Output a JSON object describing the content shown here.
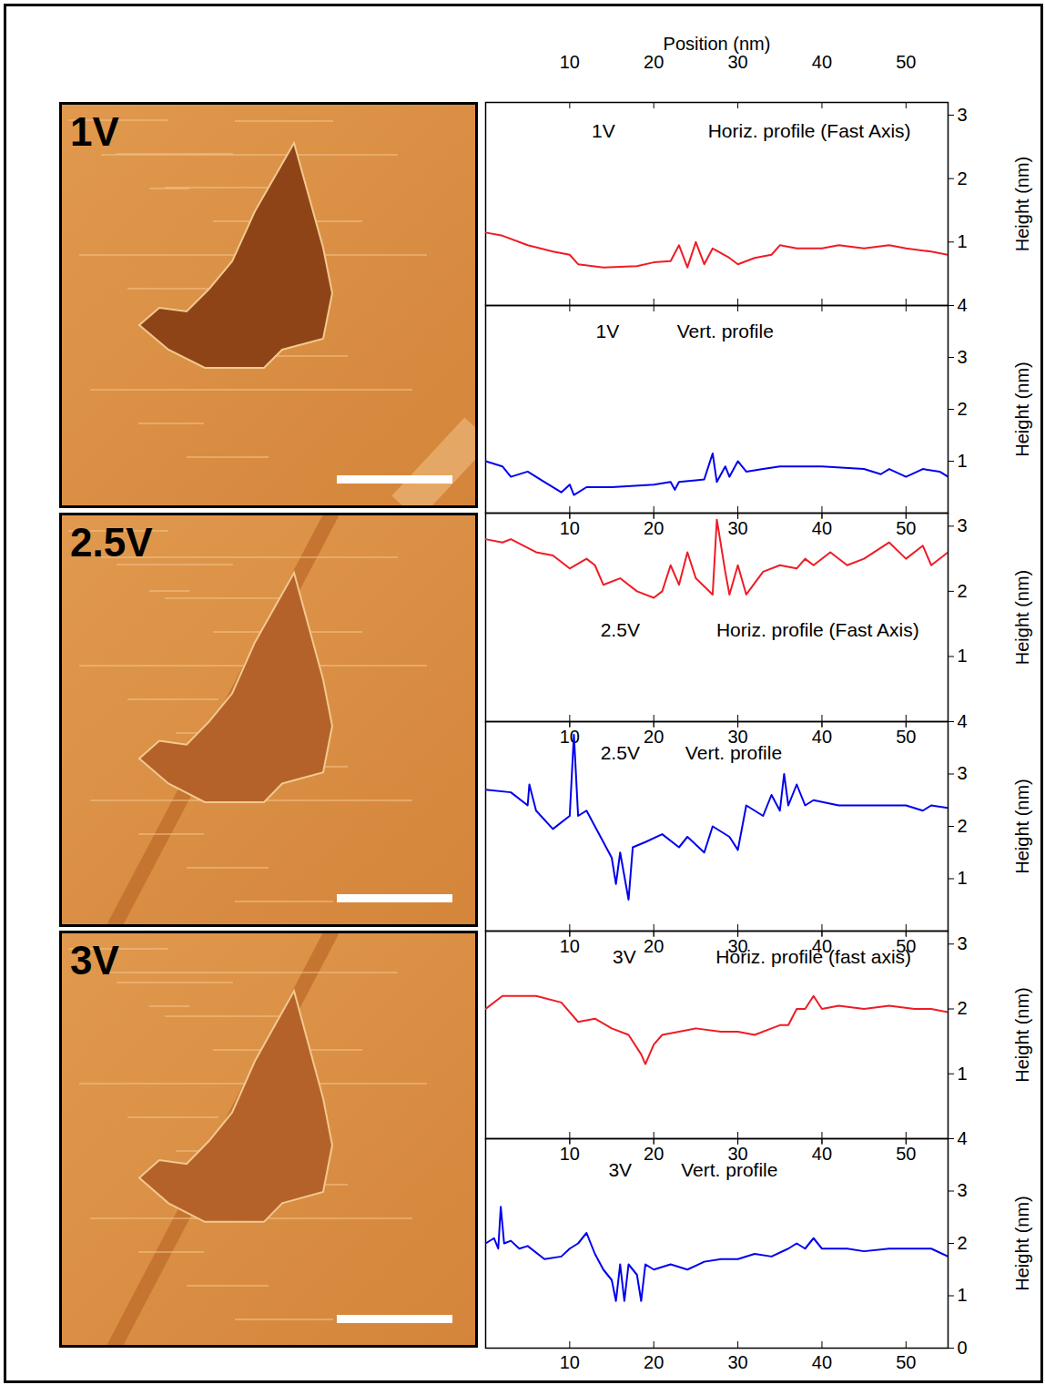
{
  "images": [
    {
      "label": "1V"
    },
    {
      "label": "2.5V"
    },
    {
      "label": "3V"
    }
  ],
  "chart_data": [
    {
      "type": "line",
      "xlabel": "Position (nm)",
      "ylabel": "Height (nm)",
      "annotations": [
        {
          "text": "1V",
          "x": 14,
          "y": 2.75
        },
        {
          "text": "Horiz. profile (Fast Axis)",
          "x": 38.5,
          "y": 2.75
        }
      ],
      "xlim": [
        0,
        55
      ],
      "xticks": [
        10,
        20,
        30,
        40,
        50
      ],
      "ylim": [
        0,
        3.2
      ],
      "yticks": [
        1,
        2,
        3
      ],
      "tick_labels": true,
      "color": "#ee1c25",
      "x": [
        0,
        2,
        5,
        8,
        10,
        11,
        14,
        18,
        20,
        22,
        23,
        24,
        25,
        26,
        27,
        29,
        30,
        32,
        34,
        35,
        37,
        40,
        42,
        45,
        48,
        50,
        53,
        55
      ],
      "values": [
        1.15,
        1.1,
        0.95,
        0.85,
        0.8,
        0.65,
        0.6,
        0.62,
        0.68,
        0.7,
        0.95,
        0.6,
        1.0,
        0.65,
        0.9,
        0.75,
        0.65,
        0.75,
        0.8,
        0.95,
        0.9,
        0.9,
        0.95,
        0.9,
        0.95,
        0.9,
        0.85,
        0.8
      ]
    },
    {
      "type": "line",
      "ylabel": "Height (nm)",
      "annotations": [
        {
          "text": "1V",
          "x": 14.5,
          "y": 3.5
        },
        {
          "text": "Vert. profile",
          "x": 28.5,
          "y": 3.5
        }
      ],
      "xlim": [
        0,
        55
      ],
      "xticks": [
        10,
        20,
        30,
        40,
        50
      ],
      "ylim": [
        0,
        4
      ],
      "yticks": [
        1,
        2,
        3,
        4
      ],
      "tick_labels": "y",
      "color": "#0000ee",
      "x": [
        0,
        2,
        3,
        5,
        7,
        9,
        10,
        10.5,
        12,
        15,
        20,
        22,
        22.5,
        23,
        26,
        27,
        27.5,
        28.5,
        29,
        30,
        31,
        33,
        35,
        40,
        45,
        47,
        48,
        50,
        52,
        54,
        55
      ],
      "values": [
        1.0,
        0.9,
        0.7,
        0.8,
        0.6,
        0.4,
        0.55,
        0.35,
        0.5,
        0.5,
        0.55,
        0.6,
        0.45,
        0.6,
        0.65,
        1.15,
        0.6,
        0.9,
        0.7,
        1.0,
        0.8,
        0.85,
        0.9,
        0.9,
        0.85,
        0.75,
        0.85,
        0.7,
        0.85,
        0.8,
        0.7
      ]
    },
    {
      "type": "line",
      "ylabel": "Height (nm)",
      "annotations": [
        {
          "text": "2.5V",
          "x": 16,
          "y": 1.4
        },
        {
          "text": "Horiz. profile (Fast Axis)",
          "x": 39.5,
          "y": 1.4
        }
      ],
      "xlim": [
        0,
        55
      ],
      "xticks": [
        10,
        20,
        30,
        40,
        50
      ],
      "ylim": [
        0,
        3.2
      ],
      "yticks": [
        1,
        2,
        3
      ],
      "tick_labels": "y",
      "color": "#ee1c25",
      "x": [
        0,
        2,
        3,
        6,
        8,
        10,
        12,
        13,
        14,
        16,
        18,
        20,
        21,
        22,
        23,
        24,
        25,
        27,
        27.5,
        28.5,
        29,
        30,
        31,
        33,
        35,
        37,
        38,
        39,
        41,
        43,
        45,
        48,
        50,
        52,
        53,
        55
      ],
      "values": [
        2.8,
        2.75,
        2.8,
        2.6,
        2.55,
        2.35,
        2.5,
        2.4,
        2.1,
        2.2,
        2.0,
        1.9,
        2.0,
        2.4,
        2.1,
        2.6,
        2.2,
        1.95,
        3.1,
        2.3,
        1.95,
        2.4,
        1.95,
        2.3,
        2.4,
        2.35,
        2.5,
        2.4,
        2.6,
        2.4,
        2.5,
        2.75,
        2.5,
        2.7,
        2.4,
        2.6
      ]
    },
    {
      "type": "line",
      "ylabel": "Height (nm)",
      "annotations": [
        {
          "text": "2.5V",
          "x": 16,
          "y": 3.4
        },
        {
          "text": "Vert. profile",
          "x": 29.5,
          "y": 3.4
        }
      ],
      "xlim": [
        0,
        55
      ],
      "xticks": [
        10,
        20,
        30,
        40,
        50
      ],
      "ylim": [
        0,
        4
      ],
      "yticks": [
        1,
        2,
        3,
        4
      ],
      "tick_labels": "y",
      "color": "#0000ee",
      "x": [
        0,
        3,
        5,
        5.2,
        6,
        8,
        10,
        10.5,
        11,
        12,
        13,
        15,
        15.5,
        16,
        17,
        17.5,
        19,
        21,
        23,
        24,
        26,
        27,
        29,
        30,
        31,
        33,
        34,
        35,
        35.5,
        36,
        37,
        38,
        39,
        42,
        47,
        50,
        52,
        53,
        55
      ],
      "values": [
        2.7,
        2.65,
        2.4,
        2.8,
        2.3,
        1.95,
        2.2,
        3.75,
        2.2,
        2.3,
        2.0,
        1.4,
        0.9,
        1.5,
        0.6,
        1.6,
        1.7,
        1.85,
        1.6,
        1.8,
        1.5,
        2.0,
        1.8,
        1.55,
        2.4,
        2.2,
        2.6,
        2.3,
        3.0,
        2.4,
        2.8,
        2.4,
        2.5,
        2.4,
        2.4,
        2.4,
        2.3,
        2.4,
        2.35
      ]
    },
    {
      "type": "line",
      "ylabel": "Height (nm)",
      "annotations": [
        {
          "text": "3V",
          "x": 16.5,
          "y": 2.8
        },
        {
          "text": "Horiz. profile (fast axis)",
          "x": 39,
          "y": 2.8
        }
      ],
      "xlim": [
        0,
        55
      ],
      "xticks": [
        10,
        20,
        30,
        40,
        50
      ],
      "ylim": [
        0,
        3.2
      ],
      "yticks": [
        1,
        2,
        3
      ],
      "tick_labels": "y",
      "color": "#ee1c25",
      "x": [
        0,
        2,
        6,
        9,
        11,
        13,
        15,
        17,
        18.5,
        19,
        20,
        21,
        23,
        25,
        28,
        30,
        32,
        34,
        35,
        36,
        37,
        38,
        39,
        40,
        42,
        45,
        48,
        51,
        53,
        55
      ],
      "values": [
        2.0,
        2.2,
        2.2,
        2.1,
        1.8,
        1.85,
        1.7,
        1.6,
        1.3,
        1.15,
        1.45,
        1.6,
        1.65,
        1.7,
        1.65,
        1.65,
        1.6,
        1.7,
        1.75,
        1.75,
        2.0,
        2.0,
        2.2,
        2.0,
        2.05,
        2.0,
        2.05,
        2.0,
        2.0,
        1.95
      ]
    },
    {
      "type": "line",
      "ylabel": "Height (nm)",
      "annotations": [
        {
          "text": "3V",
          "x": 16,
          "y": 3.4
        },
        {
          "text": "Vert. profile",
          "x": 29,
          "y": 3.4
        }
      ],
      "xlim": [
        0,
        55
      ],
      "xticks": [
        10,
        20,
        30,
        40,
        50
      ],
      "ylim": [
        0,
        4
      ],
      "yticks": [
        0,
        1,
        2,
        3,
        4
      ],
      "tick_labels": true,
      "color": "#0000ee",
      "x": [
        0,
        1,
        1.5,
        1.8,
        2.2,
        3,
        4,
        5,
        7,
        9,
        10,
        11,
        12,
        13,
        14,
        15,
        15.5,
        16,
        16.5,
        17,
        18,
        18.5,
        19,
        20,
        22,
        24,
        26,
        28,
        30,
        32,
        34,
        36,
        37,
        38,
        39,
        40,
        43,
        45,
        48,
        51,
        53,
        55
      ],
      "values": [
        2.0,
        2.1,
        1.9,
        2.7,
        2.0,
        2.05,
        1.9,
        1.95,
        1.7,
        1.75,
        1.9,
        2.0,
        2.2,
        1.8,
        1.5,
        1.3,
        0.9,
        1.6,
        0.9,
        1.6,
        1.4,
        0.9,
        1.6,
        1.5,
        1.6,
        1.5,
        1.65,
        1.7,
        1.7,
        1.8,
        1.75,
        1.9,
        2.0,
        1.9,
        2.1,
        1.9,
        1.9,
        1.85,
        1.9,
        1.9,
        1.9,
        1.75
      ]
    }
  ]
}
